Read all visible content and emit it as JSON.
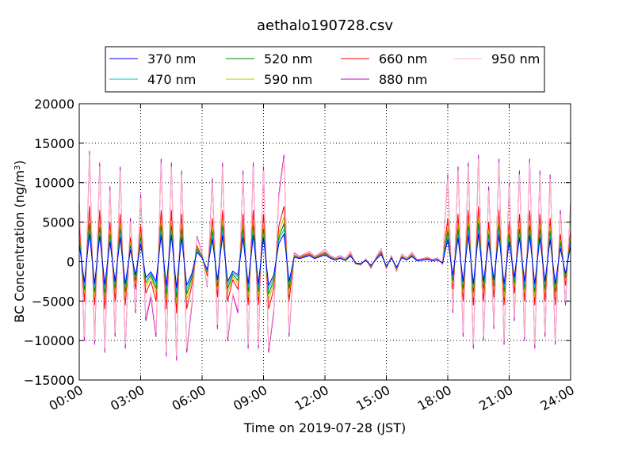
{
  "chart_data": {
    "type": "line",
    "title": "aethalo190728.csv",
    "xlabel": "Time on 2019-07-28 (JST)",
    "ylabel": "BC Concentration (ng/m³)",
    "ylabel_base": "BC Concentration (ng/m",
    "ylabel_sup": "3",
    "ylabel_tail": ")",
    "x_unit": "hour",
    "xlim": [
      0,
      24
    ],
    "ylim": [
      -15000,
      20000
    ],
    "x_ticks": [
      {
        "value": 0,
        "label": "00:00"
      },
      {
        "value": 3,
        "label": "03:00"
      },
      {
        "value": 6,
        "label": "06:00"
      },
      {
        "value": 9,
        "label": "09:00"
      },
      {
        "value": 12,
        "label": "12:00"
      },
      {
        "value": 15,
        "label": "15:00"
      },
      {
        "value": 18,
        "label": "18:00"
      },
      {
        "value": 21,
        "label": "21:00"
      },
      {
        "value": 24,
        "label": "24:00"
      }
    ],
    "y_ticks": [
      {
        "value": -15000,
        "label": "−15000"
      },
      {
        "value": -10000,
        "label": "−10000"
      },
      {
        "value": -5000,
        "label": "−5000"
      },
      {
        "value": 0,
        "label": "0"
      },
      {
        "value": 5000,
        "label": "5000"
      },
      {
        "value": 10000,
        "label": "10000"
      },
      {
        "value": 15000,
        "label": "15000"
      },
      {
        "value": 20000,
        "label": "20000"
      }
    ],
    "grid": true,
    "legend_position": "above-plot",
    "legend_columns": 4,
    "x": [
      0.0,
      0.25,
      0.5,
      0.75,
      1.0,
      1.25,
      1.5,
      1.75,
      2.0,
      2.25,
      2.5,
      2.75,
      3.0,
      3.25,
      3.5,
      3.75,
      4.0,
      4.25,
      4.5,
      4.75,
      5.0,
      5.25,
      5.5,
      5.75,
      6.0,
      6.25,
      6.5,
      6.75,
      7.0,
      7.25,
      7.5,
      7.75,
      8.0,
      8.25,
      8.5,
      8.75,
      9.0,
      9.25,
      9.5,
      9.75,
      10.0,
      10.25,
      10.5,
      10.75,
      11.0,
      11.25,
      11.5,
      11.75,
      12.0,
      12.25,
      12.5,
      12.75,
      13.0,
      13.25,
      13.5,
      13.75,
      14.0,
      14.25,
      14.5,
      14.75,
      15.0,
      15.25,
      15.5,
      15.75,
      16.0,
      16.25,
      16.5,
      16.75,
      17.0,
      17.25,
      17.5,
      17.75,
      18.0,
      18.25,
      18.5,
      18.75,
      19.0,
      19.25,
      19.5,
      19.75,
      20.0,
      20.25,
      20.5,
      20.75,
      21.0,
      21.25,
      21.5,
      21.75,
      22.0,
      22.25,
      22.5,
      22.75,
      23.0,
      23.25,
      23.5,
      23.75,
      24.0
    ],
    "series": [
      {
        "name": "950 nm",
        "color": "#ffb6c1",
        "values": [
          8000,
          -9500,
          13500,
          -10000,
          12000,
          -11000,
          9000,
          -9000,
          11500,
          -10500,
          5000,
          -6000,
          8000,
          -7000,
          -4000,
          -9000,
          12500,
          -11500,
          12000,
          -12000,
          11000,
          -11000,
          -5000,
          3000,
          1000,
          -3000,
          10000,
          -8000,
          12000,
          -9500,
          -4000,
          -6000,
          11000,
          -10500,
          12000,
          -10500,
          11500,
          -11000,
          -6000,
          8000,
          13000,
          -9000,
          1000,
          600,
          900,
          1200,
          600,
          1000,
          1500,
          700,
          400,
          700,
          300,
          1200,
          -200,
          -400,
          300,
          -800,
          500,
          1600,
          -900,
          700,
          -1200,
          900,
          400,
          1100,
          200,
          300,
          500,
          200,
          400,
          -300,
          10500,
          -6000,
          11500,
          -9000,
          12000,
          -10500,
          13000,
          -9500,
          9000,
          -8000,
          12500,
          -10000,
          9500,
          -7000,
          11000,
          -9500,
          12500,
          -10500,
          11000,
          -9000,
          10500,
          -10000,
          6000,
          -5000,
          7000
        ]
      },
      {
        "name": "880 nm",
        "color": "#bf00bf",
        "values": [
          7500,
          -10000,
          14000,
          -10500,
          12500,
          -11500,
          9500,
          -9500,
          12000,
          -11000,
          5500,
          -6500,
          8500,
          -7500,
          -4500,
          -9500,
          13000,
          -12000,
          12500,
          -12500,
          11500,
          -11500,
          -5500,
          3200,
          1100,
          -3200,
          10500,
          -8500,
          12500,
          -10000,
          -4200,
          -6500,
          11500,
          -11000,
          12500,
          -11000,
          12000,
          -11500,
          -6500,
          8500,
          13500,
          -9500,
          1100,
          650,
          950,
          1250,
          650,
          1050,
          1550,
          750,
          450,
          750,
          350,
          1250,
          -250,
          -450,
          350,
          -850,
          550,
          1650,
          -950,
          750,
          -1250,
          950,
          450,
          1150,
          250,
          350,
          550,
          250,
          450,
          -350,
          11000,
          -6500,
          12000,
          -9500,
          12500,
          -11000,
          13500,
          -10000,
          9500,
          -8500,
          13000,
          -10500,
          10000,
          -7500,
          11500,
          -10000,
          13000,
          -11000,
          11500,
          -9500,
          11000,
          -10500,
          6500,
          -5500,
          7500
        ]
      },
      {
        "name": "660 nm",
        "color": "#ff0000",
        "values": [
          4500,
          -5000,
          7000,
          -5500,
          6500,
          -6000,
          5000,
          -5000,
          6000,
          -5500,
          3000,
          -3500,
          4500,
          -4000,
          -2500,
          -5000,
          6500,
          -6000,
          6500,
          -6500,
          6000,
          -6000,
          -3000,
          2000,
          700,
          -1800,
          5500,
          -4500,
          6500,
          -5000,
          -2300,
          -3500,
          6000,
          -5500,
          6500,
          -5500,
          6000,
          -6000,
          -3500,
          4500,
          7000,
          -5000,
          800,
          500,
          800,
          1000,
          500,
          850,
          1200,
          600,
          300,
          550,
          200,
          950,
          -300,
          -350,
          200,
          -700,
          400,
          1300,
          -800,
          600,
          -1000,
          700,
          300,
          900,
          150,
          250,
          400,
          150,
          300,
          -250,
          5500,
          -3500,
          6000,
          -5000,
          6500,
          -5500,
          7000,
          -5000,
          5000,
          -4500,
          6500,
          -5500,
          5000,
          -4000,
          6000,
          -5000,
          6500,
          -5500,
          6000,
          -5000,
          5500,
          -5500,
          3500,
          -3000,
          4000
        ]
      },
      {
        "name": "590 nm",
        "color": "#bfbf00",
        "values": [
          3500,
          -4000,
          5500,
          -4500,
          5000,
          -4500,
          4000,
          -4000,
          4800,
          -4500,
          2400,
          -2800,
          3500,
          -3200,
          -2000,
          -4000,
          5200,
          -4800,
          5200,
          -5200,
          4800,
          -4800,
          -2400,
          1800,
          600,
          -1500,
          4500,
          -3600,
          5200,
          -4000,
          -1900,
          -2800,
          4800,
          -4500,
          5200,
          -4500,
          4800,
          -4800,
          -2800,
          3600,
          5600,
          -4000,
          700,
          450,
          700,
          900,
          450,
          750,
          1050,
          550,
          250,
          500,
          180,
          850,
          -250,
          -300,
          180,
          -600,
          350,
          1150,
          -700,
          550,
          -900,
          620,
          280,
          800,
          130,
          220,
          350,
          130,
          270,
          -200,
          4500,
          -2800,
          4800,
          -4000,
          5200,
          -4500,
          5600,
          -4000,
          4000,
          -3600,
          5200,
          -4500,
          4000,
          -3200,
          4800,
          -4000,
          5200,
          -4500,
          4800,
          -4000,
          4500,
          -4500,
          2800,
          -2400,
          3200
        ]
      },
      {
        "name": "520 nm",
        "color": "#008000",
        "values": [
          3000,
          -3500,
          4800,
          -3800,
          4300,
          -3900,
          3400,
          -3400,
          4100,
          -3800,
          2000,
          -2400,
          3000,
          -2700,
          -1700,
          -3400,
          4500,
          -4100,
          4500,
          -4500,
          4100,
          -4100,
          -2000,
          1600,
          550,
          -1300,
          3800,
          -3100,
          4500,
          -3400,
          -1600,
          -2400,
          4100,
          -3800,
          4500,
          -3800,
          4100,
          -4100,
          -2400,
          3100,
          4800,
          -3400,
          650,
          420,
          650,
          850,
          420,
          700,
          980,
          500,
          230,
          460,
          160,
          800,
          -220,
          -280,
          160,
          -550,
          320,
          1050,
          -650,
          500,
          -820,
          560,
          250,
          730,
          120,
          200,
          320,
          120,
          250,
          -180,
          3800,
          -2400,
          4100,
          -3400,
          4500,
          -3800,
          4800,
          -3400,
          3400,
          -3100,
          4500,
          -3800,
          3400,
          -2700,
          4100,
          -3400,
          4500,
          -3800,
          4100,
          -3400,
          3800,
          -3800,
          2400,
          -2000,
          2700
        ]
      },
      {
        "name": "470 nm",
        "color": "#00bfbf",
        "values": [
          2600,
          -3000,
          4100,
          -3300,
          3700,
          -3400,
          2900,
          -2900,
          3500,
          -3300,
          1700,
          -2000,
          2600,
          -2300,
          -1500,
          -2900,
          3900,
          -3500,
          3900,
          -3900,
          3500,
          -3500,
          -1700,
          1400,
          500,
          -1150,
          3300,
          -2700,
          3900,
          -2900,
          -1400,
          -2000,
          3500,
          -3300,
          3900,
          -3300,
          3500,
          -3500,
          -2000,
          2700,
          4100,
          -2900,
          600,
          400,
          600,
          800,
          400,
          650,
          920,
          460,
          210,
          430,
          150,
          750,
          -200,
          -260,
          150,
          -500,
          300,
          980,
          -600,
          460,
          -760,
          520,
          230,
          680,
          110,
          190,
          300,
          110,
          230,
          -170,
          3300,
          -2000,
          3500,
          -2900,
          3900,
          -3300,
          4100,
          -2900,
          2900,
          -2700,
          3900,
          -3300,
          2900,
          -2300,
          3500,
          -2900,
          3900,
          -3300,
          3500,
          -2900,
          3300,
          -3300,
          2000,
          -1700,
          2300
        ]
      },
      {
        "name": "370 nm",
        "color": "#0000ff",
        "values": [
          2200,
          -2600,
          3500,
          -2800,
          3200,
          -2900,
          2500,
          -2500,
          3000,
          -2800,
          1500,
          -1700,
          2200,
          -2000,
          -1300,
          -2500,
          3300,
          -3000,
          3300,
          -3300,
          3000,
          -3000,
          -1500,
          1200,
          450,
          -1000,
          2800,
          -2300,
          3300,
          -2500,
          -1200,
          -1700,
          3000,
          -2800,
          3300,
          -2800,
          3000,
          -3000,
          -1700,
          2300,
          3500,
          -2500,
          550,
          380,
          560,
          750,
          380,
          600,
          860,
          430,
          200,
          400,
          140,
          700,
          -180,
          -240,
          140,
          -460,
          280,
          920,
          -560,
          430,
          -700,
          480,
          210,
          630,
          100,
          180,
          280,
          100,
          210,
          -160,
          2800,
          -1700,
          3000,
          -2500,
          3300,
          -2800,
          3500,
          -2500,
          2500,
          -2300,
          3300,
          -2800,
          2500,
          -2000,
          3000,
          -2500,
          3300,
          -2800,
          3000,
          -2500,
          2800,
          -2800,
          1700,
          -1500,
          2000
        ]
      }
    ],
    "legend": [
      {
        "name": "370 nm",
        "color": "#0000ff"
      },
      {
        "name": "470 nm",
        "color": "#00bfbf"
      },
      {
        "name": "520 nm",
        "color": "#008000"
      },
      {
        "name": "590 nm",
        "color": "#bfbf00"
      },
      {
        "name": "660 nm",
        "color": "#ff0000"
      },
      {
        "name": "880 nm",
        "color": "#bf00bf"
      },
      {
        "name": "950 nm",
        "color": "#ffb6c1"
      }
    ]
  }
}
